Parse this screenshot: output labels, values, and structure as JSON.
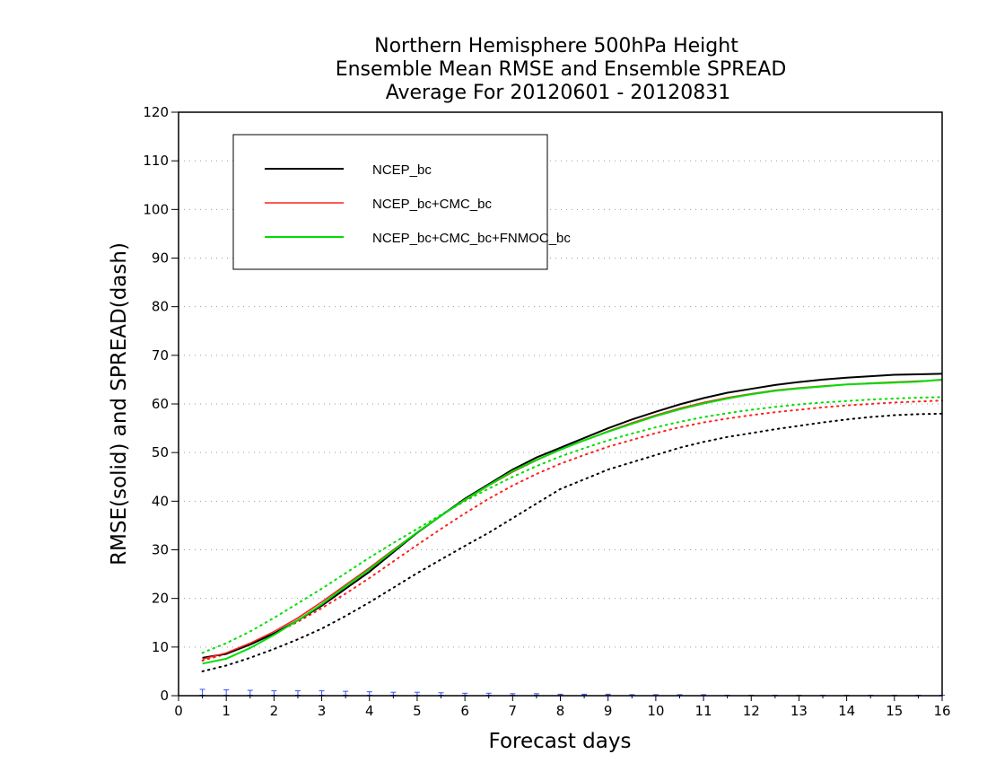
{
  "chart_data": {
    "type": "line",
    "title": [
      "Northern Hemisphere 500hPa Height",
      "Ensemble Mean RMSE and Ensemble SPREAD",
      "Average For 20120601 - 20120831"
    ],
    "xlabel": "Forecast days",
    "ylabel": "RMSE(solid) and SPREAD(dash)",
    "xlim": [
      0,
      16
    ],
    "ylim": [
      0,
      120
    ],
    "xticks": [
      0,
      1,
      2,
      3,
      4,
      5,
      6,
      7,
      8,
      9,
      10,
      11,
      12,
      13,
      14,
      15,
      16
    ],
    "yticks": [
      0,
      10,
      20,
      30,
      40,
      50,
      60,
      70,
      80,
      90,
      100,
      110,
      120
    ],
    "grid": "horizontal dotted",
    "legend_position": "top-left",
    "x": [
      0.5,
      1,
      1.5,
      2,
      2.5,
      3,
      3.5,
      4,
      4.5,
      5,
      5.5,
      6,
      6.5,
      7,
      7.5,
      8,
      8.5,
      9,
      9.5,
      10,
      10.5,
      11,
      11.5,
      12,
      12.5,
      13,
      13.5,
      14,
      14.5,
      15,
      15.5,
      16
    ],
    "series": [
      {
        "name": "NCEP_bc",
        "color": "#000000",
        "rmse": [
          7.8,
          8.6,
          10.5,
          12.8,
          15.5,
          18.5,
          22.0,
          25.5,
          29.5,
          33.5,
          37.0,
          40.5,
          43.5,
          46.5,
          49.0,
          51.0,
          53.0,
          55.0,
          56.8,
          58.4,
          59.9,
          61.2,
          62.3,
          63.1,
          63.9,
          64.5,
          65.0,
          65.4,
          65.7,
          66.0,
          66.1,
          66.2
        ],
        "spread": [
          5.0,
          6.2,
          7.8,
          9.6,
          11.6,
          13.8,
          16.4,
          19.2,
          22.2,
          25.2,
          28.0,
          30.8,
          33.5,
          36.5,
          39.5,
          42.5,
          44.5,
          46.5,
          48.0,
          49.5,
          51.0,
          52.2,
          53.2,
          54.0,
          54.8,
          55.5,
          56.2,
          56.8,
          57.3,
          57.7,
          57.9,
          58.0
        ]
      },
      {
        "name": "NCEP_bc+CMC_bc",
        "color": "#ff2020",
        "rmse": [
          7.5,
          8.8,
          10.8,
          13.2,
          16.0,
          19.3,
          22.8,
          26.3,
          30.0,
          33.6,
          37.0,
          40.2,
          43.2,
          46.0,
          48.4,
          50.6,
          52.5,
          54.4,
          56.1,
          57.7,
          59.1,
          60.3,
          61.3,
          62.1,
          62.8,
          63.3,
          63.7,
          64.0,
          64.3,
          64.5,
          64.7,
          64.9
        ],
        "spread": [
          7.2,
          8.6,
          10.6,
          12.8,
          15.2,
          18.0,
          21.0,
          24.2,
          27.6,
          31.0,
          34.3,
          37.5,
          40.5,
          43.2,
          45.6,
          47.7,
          49.5,
          51.2,
          52.6,
          54.0,
          55.2,
          56.2,
          57.0,
          57.7,
          58.3,
          58.8,
          59.3,
          59.7,
          60.0,
          60.3,
          60.5,
          60.7
        ]
      },
      {
        "name": "NCEP_bc+CMC_bc+FNMOC_bc",
        "color": "#00dd00",
        "rmse": [
          6.6,
          7.6,
          9.8,
          12.5,
          15.5,
          18.8,
          22.5,
          26.0,
          29.8,
          33.6,
          37.0,
          40.3,
          43.3,
          46.2,
          48.5,
          50.6,
          52.5,
          54.3,
          55.9,
          57.5,
          58.9,
          60.1,
          61.1,
          62.0,
          62.7,
          63.2,
          63.6,
          64.0,
          64.2,
          64.4,
          64.6,
          65.0
        ],
        "spread": [
          8.8,
          10.8,
          13.2,
          16.0,
          19.0,
          22.0,
          25.2,
          28.4,
          31.4,
          34.3,
          37.2,
          40.0,
          42.6,
          45.0,
          47.2,
          49.2,
          50.9,
          52.5,
          53.9,
          55.2,
          56.3,
          57.3,
          58.1,
          58.8,
          59.4,
          59.9,
          60.3,
          60.6,
          60.9,
          61.1,
          61.3,
          61.4
        ]
      }
    ],
    "error_bars": {
      "color": "#3050ff",
      "x": [
        0.5,
        1,
        1.5,
        2,
        2.5,
        3,
        3.5,
        4,
        4.5,
        5,
        5.5,
        6,
        6.5,
        7,
        7.5,
        8,
        8.5,
        9,
        9.5,
        10,
        10.5,
        11,
        11.5,
        12,
        12.5,
        13,
        13.5,
        14,
        14.5,
        15,
        15.5,
        16
      ],
      "y": [
        1.3,
        1.2,
        1.1,
        1.0,
        1.0,
        1.0,
        0.9,
        0.8,
        0.7,
        0.7,
        0.6,
        0.5,
        0.5,
        0.4,
        0.4,
        0.3,
        0.3,
        0.3,
        0.2,
        0.2,
        0.2,
        0.2,
        0.1,
        0.1,
        0.1,
        0.1,
        0.1,
        0.1,
        0.1,
        0.1,
        0.1,
        0.1
      ]
    }
  }
}
